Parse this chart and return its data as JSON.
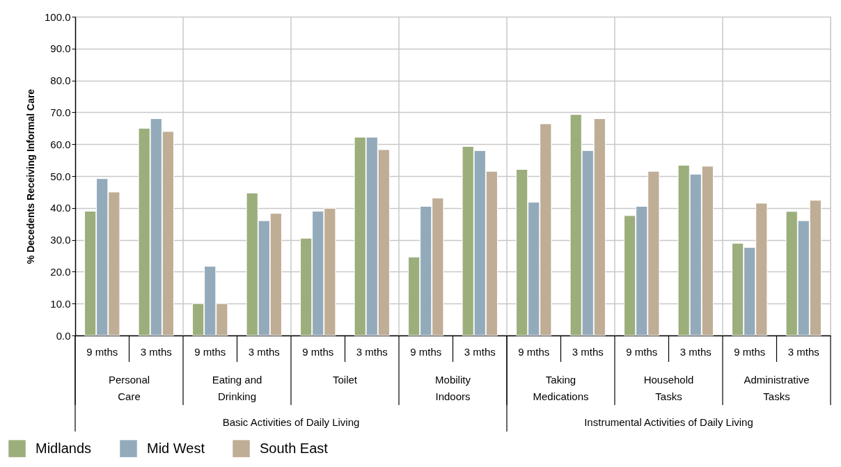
{
  "chart_data": {
    "type": "bar",
    "ylabel": "% Decedents Receiving Informal Care",
    "categories": [
      "9 mths",
      "3 mths",
      "9 mths",
      "3 mths",
      "9 mths",
      "3 mths",
      "9 mths",
      "3 mths",
      "9 mths",
      "3 mths",
      "9 mths",
      "3 mths",
      "9 mths",
      "3 mths"
    ],
    "series": [
      {
        "name": "Midlands",
        "color": "#9cae7b",
        "values": [
          39.0,
          65.0,
          10.0,
          44.7,
          30.5,
          62.2,
          24.6,
          59.3,
          52.1,
          69.3,
          37.6,
          53.4,
          28.9,
          38.9
        ]
      },
      {
        "name": "Mid West",
        "color": "#93aabb",
        "values": [
          49.2,
          68.0,
          21.7,
          36.0,
          39.0,
          62.2,
          40.5,
          58.0,
          41.8,
          58.0,
          40.5,
          50.6,
          27.6,
          36.0
        ]
      },
      {
        "name": "South East",
        "color": "#bfad96",
        "values": [
          45.0,
          64.0,
          10.0,
          38.3,
          39.9,
          58.3,
          43.1,
          51.5,
          66.4,
          68.0,
          51.5,
          53.1,
          41.5,
          42.4
        ]
      }
    ],
    "ylim": [
      0,
      100
    ],
    "yticks": [
      {
        "value": 0,
        "label": "0.0"
      },
      {
        "value": 10,
        "label": "10.0"
      },
      {
        "value": 20,
        "label": "20.0"
      },
      {
        "value": 30,
        "label": "30.0"
      },
      {
        "value": 40,
        "label": "40.0"
      },
      {
        "value": 50,
        "label": "50.0"
      },
      {
        "value": 60,
        "label": "60.0"
      },
      {
        "value": 70,
        "label": "70.0"
      },
      {
        "value": 80,
        "label": "80.0"
      },
      {
        "value": 90,
        "label": "90.0"
      },
      {
        "value": 100,
        "label": "100.0"
      }
    ],
    "annotations": [
      "Personal\nCare",
      "Eating and\nDrinking",
      "Toilet",
      "Mobility\nIndoors",
      "Taking\nMedications",
      "Household\nTasks",
      "Administrative\nTasks",
      "Basic Activities of Daily Living",
      "Instrumental Activities of Daily Living"
    ],
    "grid": true,
    "legend": "bottom left"
  }
}
